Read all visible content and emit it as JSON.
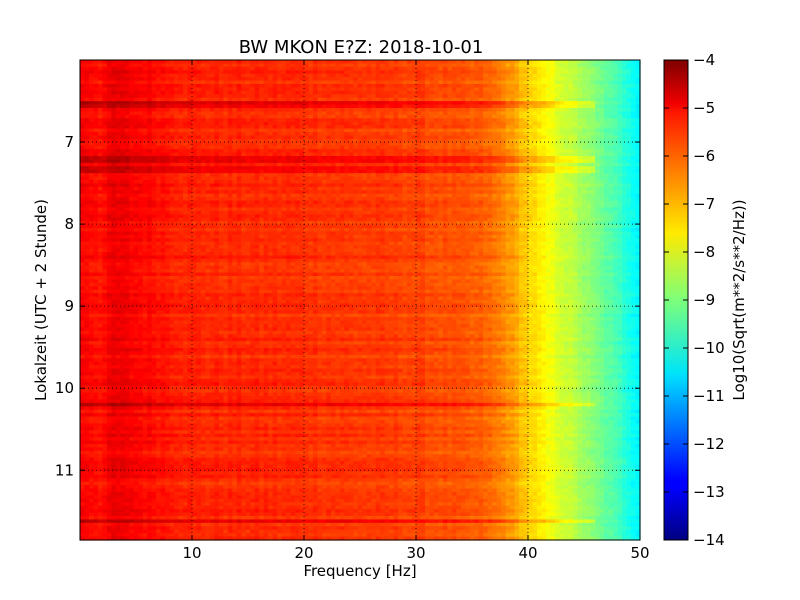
{
  "chart_data": {
    "type": "heatmap",
    "title": "BW MKON E?Z: 2018-10-01",
    "xlabel": "Frequency [Hz]",
    "ylabel": "Lokalzeit (UTC + 2 Stunde)",
    "xlim": [
      0,
      50
    ],
    "ylim": [
      6.0,
      11.85
    ],
    "y_inverted": true,
    "xticks": [
      10,
      20,
      30,
      40,
      50
    ],
    "yticks": [
      7,
      8,
      9,
      10,
      11
    ],
    "grid": true,
    "colormap": "jet",
    "colorbar": {
      "label": "Log10(Sqrt(m**2/s**2/Hz))",
      "range": [
        -14,
        -4
      ],
      "ticks": [
        -4,
        -5,
        -6,
        -7,
        -8,
        -9,
        -10,
        -11,
        -12,
        -13,
        -14
      ]
    },
    "spectrum_profile": {
      "frequency_hz": [
        0,
        2,
        3,
        10,
        20,
        30,
        36,
        38,
        40,
        42,
        44,
        46,
        48,
        50
      ],
      "log10_amplitude": [
        -5.2,
        -5.4,
        -5.1,
        -5.6,
        -5.7,
        -5.9,
        -6.2,
        -6.6,
        -7.3,
        -7.9,
        -8.4,
        -9.0,
        -9.6,
        -10.3
      ]
    },
    "strong_bands": [
      {
        "time_h": 6.52,
        "log10_amplitude": -5.0
      },
      {
        "time_h": 7.3,
        "log10_amplitude": -4.9
      },
      {
        "time_h": 7.2,
        "log10_amplitude": -4.6
      },
      {
        "time_h": 11.6,
        "log10_amplitude": -4.8
      },
      {
        "time_h": 10.18,
        "log10_amplitude": -4.9
      }
    ]
  }
}
